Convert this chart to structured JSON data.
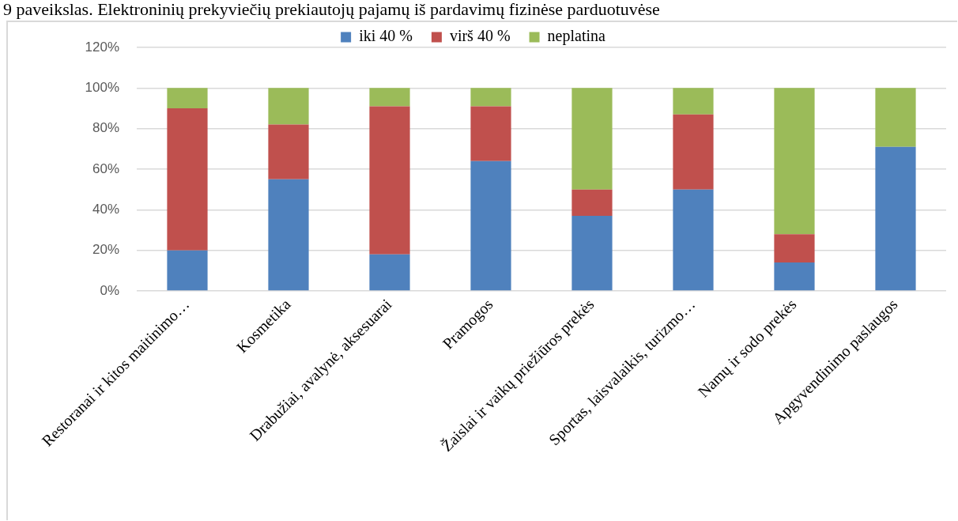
{
  "chart_data": {
    "type": "bar",
    "title": "9 paveikslas. Elektroninių prekyviečių prekiautojų pajamų iš pardavimų fizinėse parduotuvėse",
    "categories": [
      "Restoranai ir kitos maitinimo…",
      "Kosmetika",
      "Drabužiai, avalynė, aksesuarai",
      "Pramogos",
      "Žaislai ir vaikų priežiūros prekės",
      "Sportas, laisvalaikis, turizmo…",
      "Namų ir sodo prekės",
      "Apgyvendinimo paslaugos"
    ],
    "series": [
      {
        "name": "iki 40 %",
        "color": "#4f81bd",
        "values": [
          20,
          55,
          18,
          64,
          37,
          50,
          14,
          71
        ]
      },
      {
        "name": "virš 40 %",
        "color": "#c0504d",
        "values": [
          70,
          27,
          73,
          27,
          13,
          37,
          14,
          0
        ]
      },
      {
        "name": "neplatina",
        "color": "#9bbb59",
        "values": [
          10,
          18,
          9,
          9,
          50,
          13,
          72,
          29
        ]
      }
    ],
    "stacked": true,
    "ylim": [
      0,
      120
    ],
    "yticks": [
      {
        "value": 0,
        "label": "0%"
      },
      {
        "value": 20,
        "label": "20%"
      },
      {
        "value": 40,
        "label": "40%"
      },
      {
        "value": 60,
        "label": "60%"
      },
      {
        "value": 80,
        "label": "80%"
      },
      {
        "value": 100,
        "label": "100%"
      },
      {
        "value": 120,
        "label": "120%"
      }
    ],
    "grid": "y",
    "legend": "top"
  }
}
